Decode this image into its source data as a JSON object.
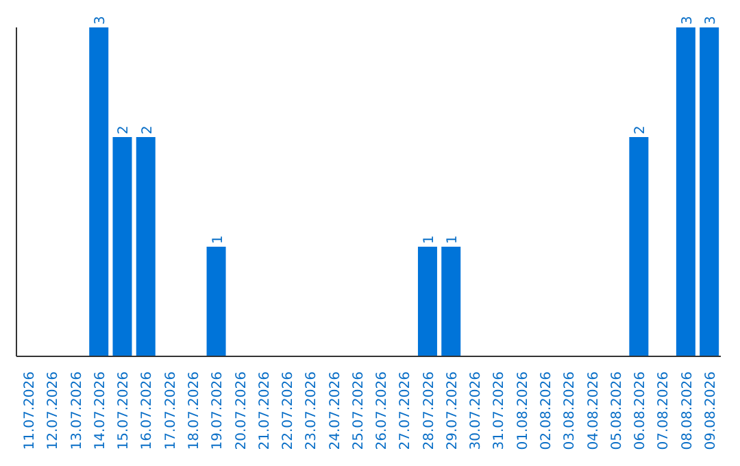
{
  "chart_data": {
    "type": "bar",
    "categories": [
      "11.07.2026",
      "12.07.2026",
      "13.07.2026",
      "14.07.2026",
      "15.07.2026",
      "16.07.2026",
      "17.07.2026",
      "18.07.2026",
      "19.07.2026",
      "20.07.2026",
      "21.07.2026",
      "22.07.2026",
      "23.07.2026",
      "24.07.2026",
      "25.07.2026",
      "26.07.2026",
      "27.07.2026",
      "28.07.2026",
      "29.07.2026",
      "30.07.2026",
      "31.07.2026",
      "01.08.2026",
      "02.08.2026",
      "03.08.2026",
      "04.08.2026",
      "05.08.2026",
      "06.08.2026",
      "07.08.2026",
      "08.08.2026",
      "09.08.2026"
    ],
    "values": [
      0,
      0,
      0,
      3,
      2,
      2,
      0,
      0,
      1,
      0,
      0,
      0,
      0,
      0,
      0,
      0,
      0,
      1,
      1,
      0,
      0,
      0,
      0,
      0,
      0,
      0,
      2,
      0,
      3,
      3
    ],
    "value_labels": [
      null,
      null,
      null,
      "3",
      "2",
      "2",
      null,
      null,
      "1",
      null,
      null,
      null,
      null,
      null,
      null,
      null,
      null,
      "1",
      "1",
      null,
      null,
      null,
      null,
      null,
      null,
      null,
      "2",
      null,
      "3",
      "3"
    ],
    "color": "#0074d9",
    "grid": false
  }
}
